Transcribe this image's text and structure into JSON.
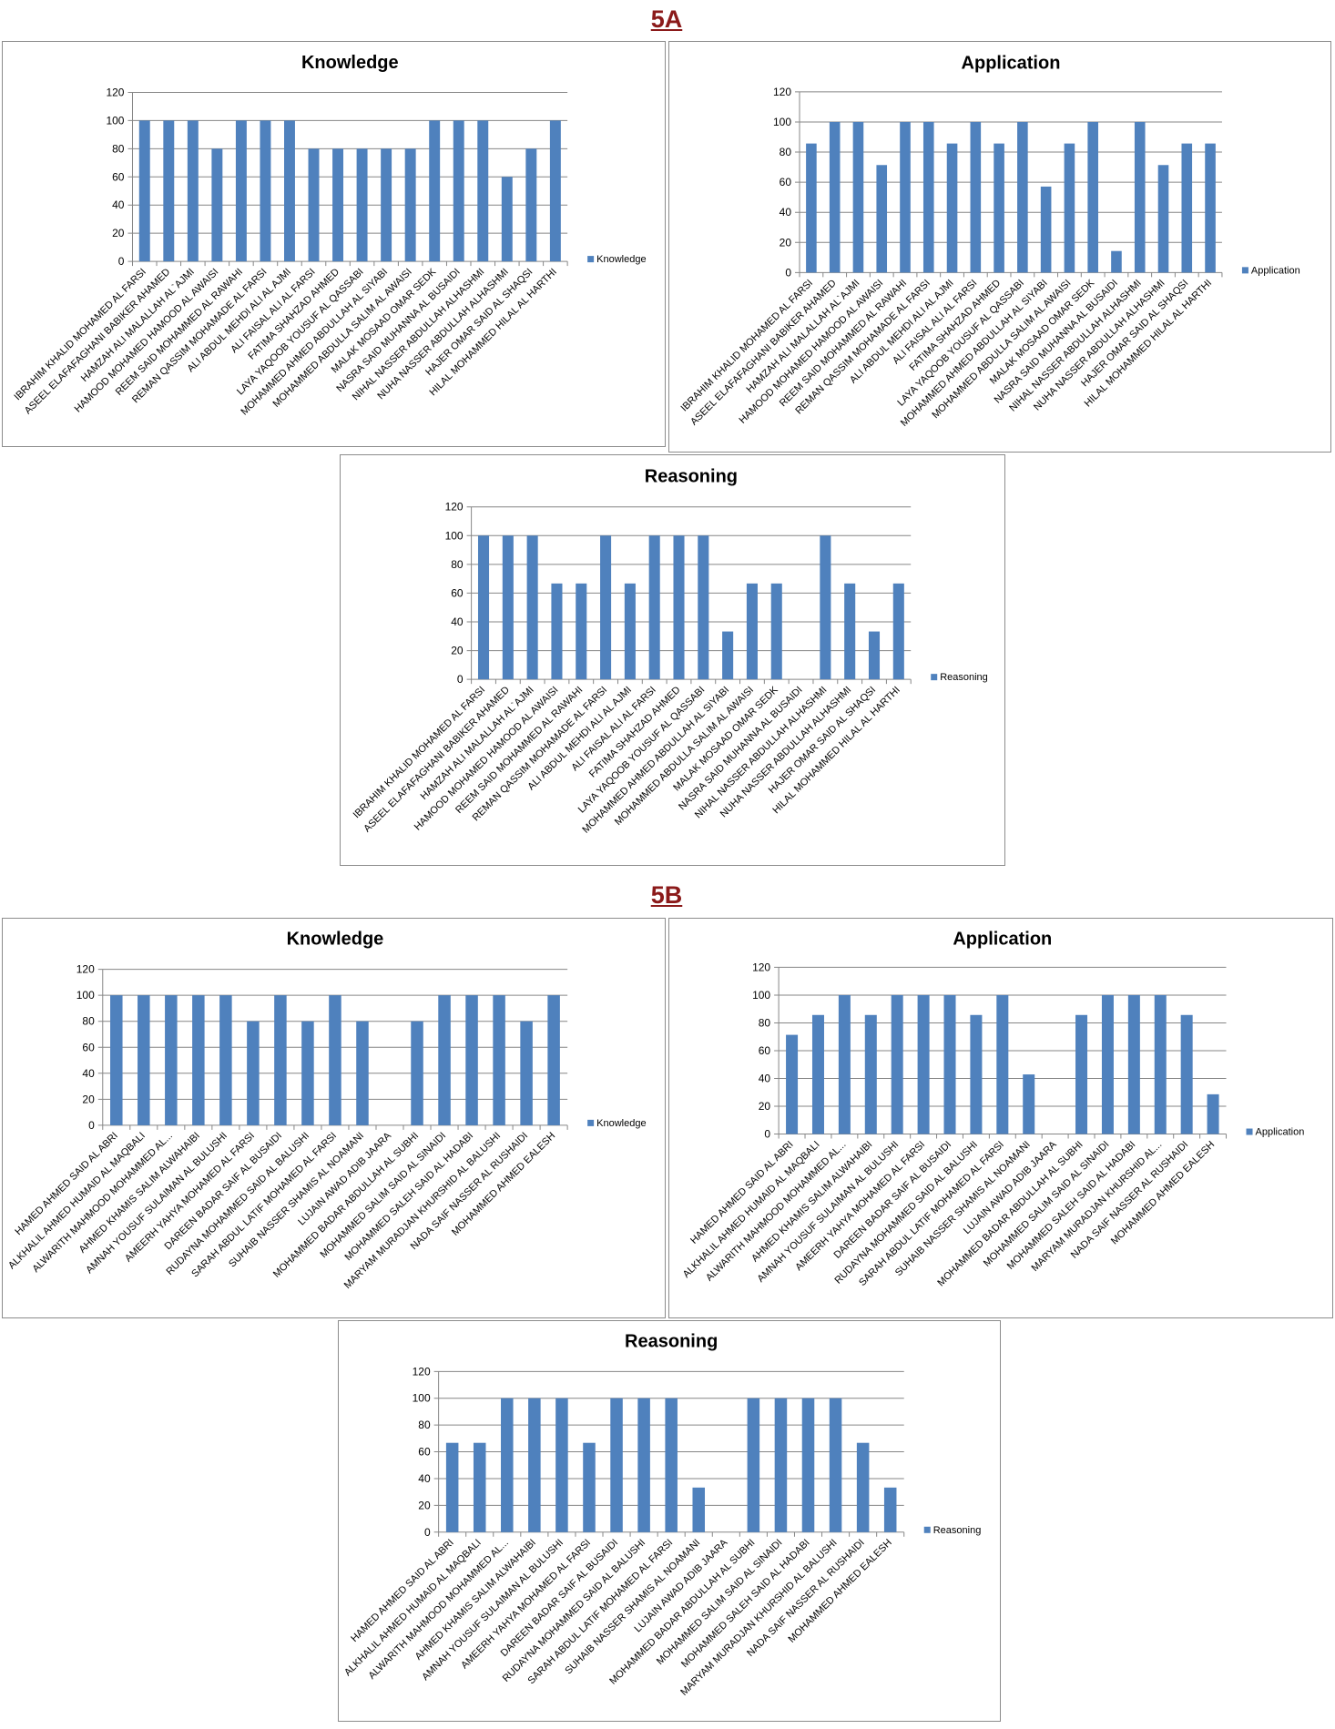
{
  "sections": {
    "a": "5A",
    "b": "5B"
  },
  "colors": {
    "bar": "#4F81BD",
    "grid": "#868686",
    "section": "#8B1A1A"
  },
  "chart_data": [
    {
      "type": "bar",
      "section": "5A",
      "title": "Knowledge",
      "legend": "Knowledge",
      "legend_position": "right",
      "ylim": [
        0,
        120
      ],
      "yticks": [
        0,
        20,
        40,
        60,
        80,
        100,
        120
      ],
      "categories": [
        "IBRAHIM KHALID MOHAMED AL FARSI",
        "ASEEL ELAFAFAGHANI BABIKER AHAMED",
        "HAMZAH ALI MALALLAH AL`AJMI",
        "HAMOOD MOHAMED HAMOOD AL AWAISI",
        "REEM SAID MOHAMMED AL RAWAHI",
        "REMAN QASSIM MOHAMADE AL FARSI",
        "ALI ABDUL MEHDI ALI AL AJMI",
        "ALI FAISAL ALI AL FARSI",
        "FATIMA SHAHZAD AHMED",
        "LAYA YAQOOB YOUSUF AL QASSABI",
        "MOHAMMED AHMED ABDULLAH AL SIYABI",
        "MOHAMMED ABDULLA SALIM AL AWAISI",
        "MALAK MOSAAD OMAR SEDK",
        "NASRA SAID MUHANNA AL BUSAIDI",
        "NIHAL NASSER ABDULLAH ALHASHMI",
        "NUHA NASSER ABDULLAH ALHASHMI",
        "HAJER OMAR SAID AL SHAQSI",
        "HILAL MOHAMMED HILAL AL HARTHI"
      ],
      "values": [
        100,
        100,
        100,
        80,
        100,
        100,
        100,
        80,
        80,
        80,
        80,
        80,
        100,
        100,
        100,
        60,
        80,
        100
      ]
    },
    {
      "type": "bar",
      "section": "5A",
      "title": "Application",
      "legend": "Application",
      "legend_position": "right",
      "ylim": [
        0,
        120
      ],
      "yticks": [
        0,
        20,
        40,
        60,
        80,
        100,
        120
      ],
      "categories": [
        "IBRAHIM KHALID MOHAMED AL FARSI",
        "ASEEL ELAFAFAGHANI BABIKER AHAMED",
        "HAMZAH ALI MALALLAH AL`AJMI",
        "HAMOOD MOHAMED HAMOOD AL AWAISI",
        "REEM SAID MOHAMMED AL RAWAHI",
        "REMAN QASSIM MOHAMADE AL FARSI",
        "ALI ABDUL MEHDI ALI AL AJMI",
        "ALI FAISAL ALI AL FARSI",
        "FATIMA SHAHZAD AHMED",
        "LAYA YAQOOB YOUSUF AL QASSABI",
        "MOHAMMED AHMED ABDULLAH AL SIYABI",
        "MOHAMMED ABDULLA SALIM AL AWAISI",
        "MALAK MOSAAD OMAR SEDK",
        "NASRA SAID MUHANNA AL BUSAIDI",
        "NIHAL NASSER ABDULLAH ALHASHMI",
        "NUHA NASSER ABDULLAH ALHASHMI",
        "HAJER OMAR SAID AL SHAQSI",
        "HILAL MOHAMMED HILAL AL HARTHI"
      ],
      "values": [
        85.7,
        100,
        100,
        71.4,
        100,
        100,
        85.7,
        100,
        85.7,
        100,
        57.1,
        85.7,
        100,
        14.3,
        100,
        71.4,
        85.7,
        85.7
      ]
    },
    {
      "type": "bar",
      "section": "5A",
      "title": "Reasoning",
      "legend": "Reasoning",
      "legend_position": "right",
      "ylim": [
        0,
        120
      ],
      "yticks": [
        0,
        20,
        40,
        60,
        80,
        100,
        120
      ],
      "categories": [
        "IBRAHIM KHALID MOHAMED AL FARSI",
        "ASEEL ELAFAFAGHANI BABIKER AHAMED",
        "HAMZAH ALI MALALLAH AL`AJMI",
        "HAMOOD MOHAMED HAMOOD AL AWAISI",
        "REEM SAID MOHAMMED AL RAWAHI",
        "REMAN QASSIM MOHAMADE AL FARSI",
        "ALI ABDUL MEHDI ALI AL AJMI",
        "ALI FAISAL ALI AL FARSI",
        "FATIMA SHAHZAD AHMED",
        "LAYA YAQOOB YOUSUF AL QASSABI",
        "MOHAMMED AHMED ABDULLAH AL SIYABI",
        "MOHAMMED ABDULLA SALIM AL AWAISI",
        "MALAK MOSAAD OMAR SEDK",
        "NASRA SAID MUHANNA AL BUSAIDI",
        "NIHAL NASSER ABDULLAH ALHASHMI",
        "NUHA NASSER ABDULLAH ALHASHMI",
        "HAJER OMAR SAID AL SHAQSI",
        "HILAL MOHAMMED HILAL AL HARTHI"
      ],
      "values": [
        100,
        100,
        100,
        66.7,
        66.7,
        100,
        66.7,
        100,
        100,
        100,
        33.3,
        66.7,
        66.7,
        0,
        100,
        66.7,
        33.3,
        66.7
      ]
    },
    {
      "type": "bar",
      "section": "5B",
      "title": "Knowledge",
      "legend": "Knowledge",
      "legend_position": "right",
      "ylim": [
        0,
        120
      ],
      "yticks": [
        0,
        20,
        40,
        60,
        80,
        100,
        120
      ],
      "categories": [
        "HAMED AHMED SAID AL ABRI",
        "ALKHALIL AHMED HUMAID AL MAQBALI",
        "ALWARITH MAHMOOD MOHAMMED AL...",
        "AHMED KHAMIS SALIM ALWAHAIBI",
        "AMNAH YOUSUF SULAIMAN AL BULUSHI",
        "AMEERH YAHYA MOHAMED AL FARSI",
        "DAREEN BADAR SAIF AL BUSAIDI",
        "RUDAYNA MOHAMMED SAID AL BALUSHI",
        "SARAH ABDUL LATIF MOHAMED AL FARSI",
        "SUHAIB NASSER SHAMIS AL NOAMANI",
        "LUJAIN AWAD ADIB JAARA",
        "MOHAMMED BADAR ABDULLAH AL SUBHI",
        "MOHAMMED SALIM SAID AL SINAIDI",
        "MOHAMMED SALEH SAID AL HADABI",
        "MARYAM MURADJAN KHURSHID AL BALUSHI",
        "NADA SAIF NASSER AL RUSHAIDI",
        "MOHAMMED AHMED EALESH"
      ],
      "values": [
        100,
        100,
        100,
        100,
        100,
        80,
        100,
        80,
        100,
        80,
        0,
        80,
        100,
        100,
        100,
        80,
        100
      ]
    },
    {
      "type": "bar",
      "section": "5B",
      "title": "Application",
      "legend": "Application",
      "legend_position": "right",
      "ylim": [
        0,
        120
      ],
      "yticks": [
        0,
        20,
        40,
        60,
        80,
        100,
        120
      ],
      "categories": [
        "HAMED AHMED SAID AL ABRI",
        "ALKHALIL AHMED HUMAID AL MAQBALI",
        "ALWARITH MAHMOOD MOHAMMED AL...",
        "AHMED KHAMIS SALIM ALWAHAIBI",
        "AMNAH YOUSUF SULAIMAN AL BULUSHI",
        "AMEERH YAHYA MOHAMED AL FARSI",
        "DAREEN BADAR SAIF AL BUSAIDI",
        "RUDAYNA MOHAMMED SAID AL BALUSHI",
        "SARAH ABDUL LATIF MOHAMED AL FARSI",
        "SUHAIB NASSER SHAMIS AL NOAMANI",
        "LUJAIN AWAD ADIB JAARA",
        "MOHAMMED BADAR ABDULLAH AL SUBHI",
        "MOHAMMED SALIM SAID AL SINAIDI",
        "MOHAMMED SALEH SAID AL HADABI",
        "MARYAM MURADJAN KHURSHID AL...",
        "NADA SAIF NASSER AL RUSHAIDI",
        "MOHAMMED AHMED EALESH"
      ],
      "values": [
        71.4,
        85.7,
        100,
        85.7,
        100,
        100,
        100,
        85.7,
        100,
        42.9,
        0,
        85.7,
        100,
        100,
        100,
        85.7,
        28.6
      ]
    },
    {
      "type": "bar",
      "section": "5B",
      "title": "Reasoning",
      "legend": "Reasoning",
      "legend_position": "right",
      "ylim": [
        0,
        120
      ],
      "yticks": [
        0,
        20,
        40,
        60,
        80,
        100,
        120
      ],
      "categories": [
        "HAMED AHMED SAID AL ABRI",
        "ALKHALIL AHMED HUMAID AL MAQBALI",
        "ALWARITH MAHMOOD MOHAMMED AL...",
        "AHMED KHAMIS SALIM ALWAHAIBI",
        "AMNAH YOUSUF SULAIMAN AL BULUSHI",
        "AMEERH YAHYA MOHAMED AL FARSI",
        "DAREEN BADAR SAIF AL BUSAIDI",
        "RUDAYNA MOHAMMED SAID AL BALUSHI",
        "SARAH ABDUL LATIF MOHAMED AL FARSI",
        "SUHAIB NASSER SHAMIS AL NOAMANI",
        "LUJAIN AWAD ADIB JAARA",
        "MOHAMMED BADAR ABDULLAH AL SUBHI",
        "MOHAMMED SALIM SAID AL SINAIDI",
        "MOHAMMED SALEH SAID AL HADABI",
        "MARYAM MURADJAN KHURSHID AL BALUSHI",
        "NADA SAIF NASSER AL RUSHAIDI",
        "MOHAMMED AHMED EALESH"
      ],
      "values": [
        66.7,
        66.7,
        100,
        100,
        100,
        66.7,
        100,
        100,
        100,
        33.3,
        0,
        100,
        100,
        100,
        100,
        66.7,
        33.3
      ]
    }
  ]
}
